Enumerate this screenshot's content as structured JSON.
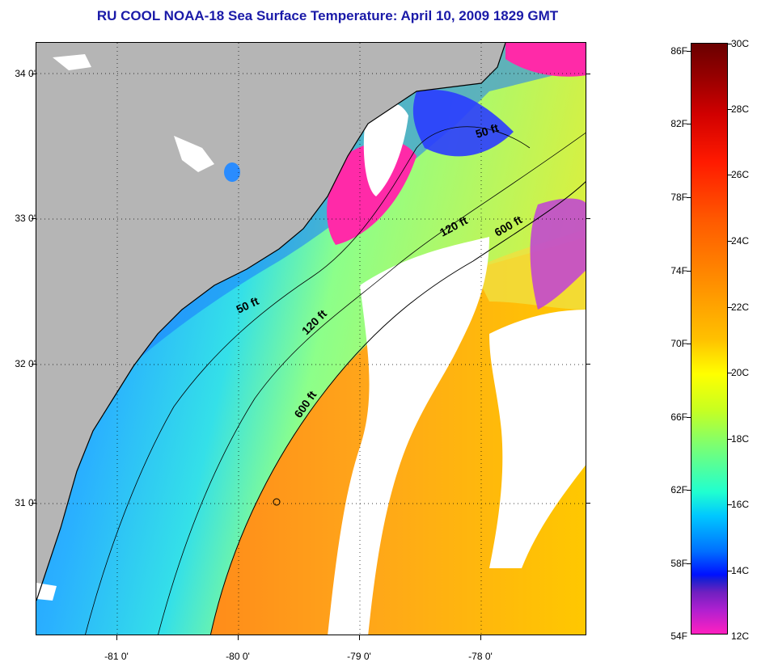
{
  "title": "RU COOL  NOAA-18  Sea Surface Temperature:  April 10, 2009 1829 GMT",
  "y_axis_labels": [
    "34 0'",
    "33 0'",
    "32 0'",
    "31 0'"
  ],
  "x_axis_labels": [
    "-81 0'",
    "-80 0'",
    "-79 0'",
    "-78 0'"
  ],
  "contour_labels": {
    "c50_north": "50 ft",
    "c50_south": "50 ft",
    "c120_north": "120 ft",
    "c120_south": "120 ft",
    "c600_north": "600 ft",
    "c600_south": "600 ft"
  },
  "colorbar": {
    "fahrenheit": [
      "86F",
      "82F",
      "78F",
      "74F",
      "70F",
      "66F",
      "62F",
      "58F",
      "54F"
    ],
    "celsius": [
      "30C",
      "28C",
      "26C",
      "24C",
      "22C",
      "20C",
      "18C",
      "16C",
      "14C",
      "12C"
    ]
  },
  "colors": {
    "title": "#1a1aa8",
    "land": "#b5b5b5",
    "cloud": "#ffffff"
  }
}
